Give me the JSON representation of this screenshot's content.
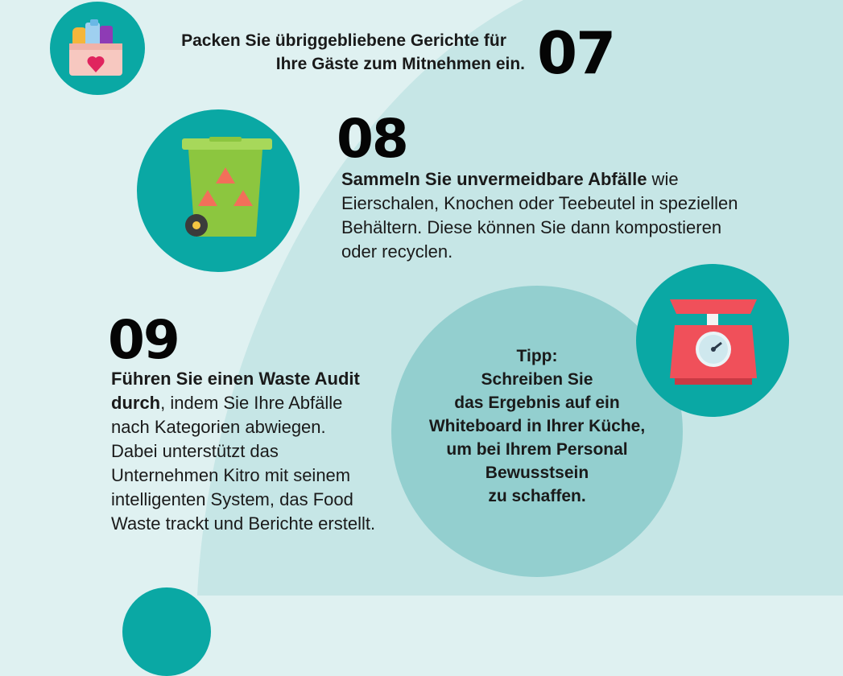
{
  "colors": {
    "teal": "#0aa8a4",
    "soft_circle": "#93cfcf",
    "background": "#dff1f1",
    "large_shape": "#c6e6e6"
  },
  "item07": {
    "number": "07",
    "line1": "Packen Sie übriggebliebene Gerichte für",
    "line2": "Ihre Gäste zum Mitnehmen ein.",
    "icon": "takeaway-box-heart-icon"
  },
  "item08": {
    "number": "08",
    "bold": "Sammeln Sie unvermeidbare Abfälle",
    "rest1": " wie",
    "line2": "Eierschalen, Knochen oder Teebeutel in speziellen",
    "line3": "Behältern. Diese können Sie dann kompostieren",
    "line4": "oder recyclen.",
    "icon": "recycling-bin-icon"
  },
  "item09": {
    "number": "09",
    "bold1": "Führen Sie einen Waste Audit",
    "bold2": "durch",
    "rest2": ", indem Sie Ihre Abfälle",
    "line3": "nach Kategorien abwiegen.",
    "line4": "Dabei unterstützt das",
    "line5": "Unternehmen Kitro mit seinem",
    "line6": "intelligenten System, das Food",
    "line7": "Waste trackt und Berichte erstellt.",
    "icon": "kitchen-scale-icon"
  },
  "tip": {
    "lines": [
      "Tipp:",
      "Schreiben Sie",
      "das Ergebnis auf ein",
      "Whiteboard in Ihrer Küche,",
      "um bei Ihrem Personal",
      "Bewusstsein",
      "zu schaffen."
    ]
  }
}
